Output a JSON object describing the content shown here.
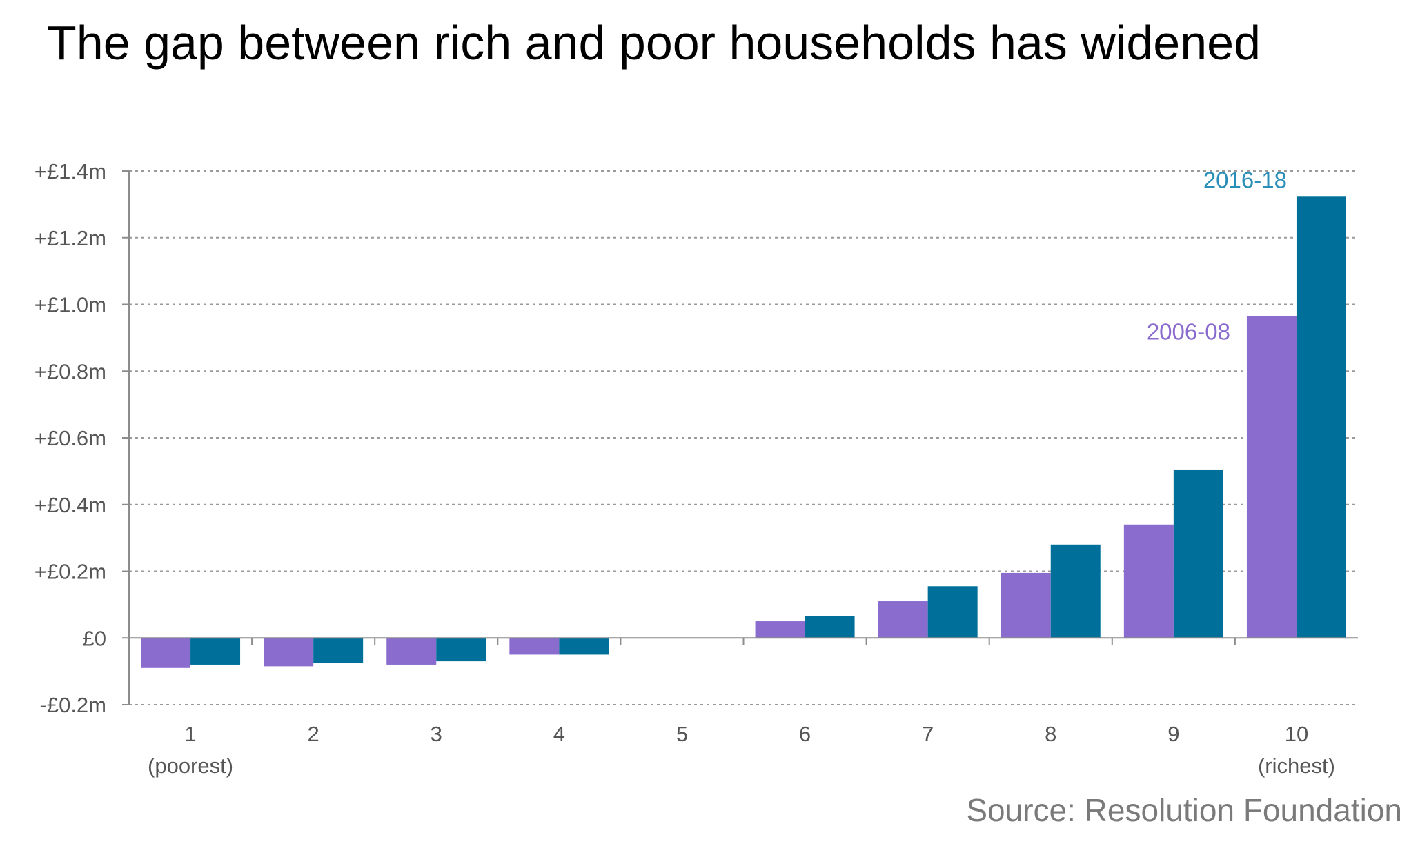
{
  "title": "The gap between rich and poor households has widened",
  "source": "Source: Resolution Foundation",
  "chart_data": {
    "type": "bar",
    "title": "",
    "xlabel": "",
    "ylabel": "",
    "categories": [
      "1",
      "2",
      "3",
      "4",
      "5",
      "6",
      "7",
      "8",
      "9",
      "10"
    ],
    "category_sublabels": [
      "(poorest)",
      "",
      "",
      "",
      "",
      "",
      "",
      "",
      "",
      "(richest)"
    ],
    "series": [
      {
        "name": "2006-08",
        "color": "#8a6bce",
        "values": [
          -0.09,
          -0.085,
          -0.08,
          -0.05,
          0,
          0.05,
          0.11,
          0.195,
          0.34,
          0.965
        ]
      },
      {
        "name": "2016-18",
        "color": "#00709a",
        "values": [
          -0.08,
          -0.075,
          -0.07,
          -0.05,
          0,
          0.065,
          0.155,
          0.28,
          0.505,
          1.325
        ]
      }
    ],
    "ylim": [
      -0.2,
      1.4
    ],
    "yticks": [
      {
        "value": 1.4,
        "label": "+£1.4m"
      },
      {
        "value": 1.2,
        "label": "+£1.2m"
      },
      {
        "value": 1.0,
        "label": "+£1.0m"
      },
      {
        "value": 0.8,
        "label": "+£0.8m"
      },
      {
        "value": 0.6,
        "label": "+£0.6m"
      },
      {
        "value": 0.4,
        "label": "+£0.4m"
      },
      {
        "value": 0.2,
        "label": "+£0.2m"
      },
      {
        "value": 0,
        "label": "£0"
      },
      {
        "value": -0.2,
        "label": "-£0.2m"
      }
    ],
    "grid": true,
    "gridline_color": "#9a9a9a",
    "axis_color": "#8c8c8c"
  }
}
